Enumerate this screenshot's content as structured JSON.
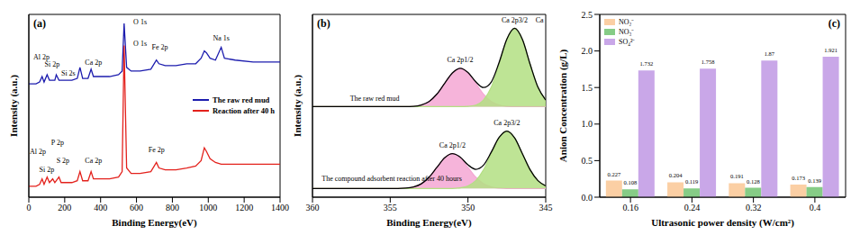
{
  "chart_data": [
    {
      "type": "line",
      "title": "(a)",
      "x_label": "Binding Energy(eV)",
      "y_label": "Intensity (a.u.)",
      "tick_labels": "x",
      "legend": "right",
      "x": [
        0,
        20,
        40,
        60,
        74,
        85,
        102,
        115,
        133,
        145,
        153,
        168,
        180,
        200,
        240,
        270,
        285,
        300,
        330,
        347,
        360,
        400,
        450,
        500,
        520,
        531,
        545,
        570,
        620,
        680,
        711,
        725,
        760,
        820,
        880,
        930,
        960,
        978,
        990,
        1010,
        1040,
        1072,
        1090,
        1150,
        1250,
        1350,
        1400
      ],
      "xlim": [
        0,
        1400
      ],
      "xticks": [
        0,
        200,
        400,
        600,
        800,
        1000,
        1200,
        1400
      ],
      "ylim": [
        0,
        100
      ],
      "series": [
        {
          "name": "The raw red mud",
          "color": "#1c1cae",
          "values": [
            62,
            62,
            62,
            63,
            66,
            63,
            67,
            64,
            64,
            64,
            67,
            64,
            64,
            64,
            64,
            65,
            71,
            65,
            65,
            70,
            66,
            66,
            66,
            67,
            69,
            95,
            71,
            69,
            69,
            70,
            75,
            73,
            72,
            72,
            73,
            73,
            76,
            80,
            79,
            76,
            75,
            82,
            76,
            75,
            74,
            74,
            74
          ]
        },
        {
          "name": "Reaction after 40 h",
          "color": "#e3211c",
          "values": [
            6,
            6,
            6,
            7,
            10,
            7,
            11,
            8,
            10,
            8,
            9,
            11,
            8,
            8,
            8,
            9,
            14,
            9,
            9,
            14,
            10,
            10,
            10,
            11,
            14,
            83,
            16,
            13,
            13,
            14,
            19,
            16,
            15,
            15,
            16,
            17,
            20,
            27,
            25,
            21,
            19,
            18,
            18,
            18,
            18,
            18,
            18
          ]
        }
      ],
      "annotations": [
        {
          "text": "Al 2p",
          "x": 70,
          "y": 77
        },
        {
          "text": "Si 2p",
          "x": 130,
          "y": 73
        },
        {
          "text": "Si 2s",
          "x": 220,
          "y": 68
        },
        {
          "text": "Ca 2p",
          "x": 360,
          "y": 74
        },
        {
          "text": "O 1s",
          "x": 620,
          "y": 96
        },
        {
          "text": "Fe 2p",
          "x": 730,
          "y": 82
        },
        {
          "text": "Na 1s",
          "x": 1072,
          "y": 87
        },
        {
          "text": "Al 2p",
          "x": 50,
          "y": 25
        },
        {
          "text": "Si 2p",
          "x": 100,
          "y": 15
        },
        {
          "text": "P 2p",
          "x": 160,
          "y": 30
        },
        {
          "text": "S 2p",
          "x": 190,
          "y": 20
        },
        {
          "text": "Ca 2p",
          "x": 360,
          "y": 20
        },
        {
          "text": "O 1s",
          "x": 620,
          "y": 84
        },
        {
          "text": "Fe 2p",
          "x": 711,
          "y": 26
        }
      ]
    },
    {
      "type": "line",
      "title": "(b)",
      "x_label": "Binding Energy(eV)",
      "y_label": "Intensity (a.u.)",
      "tick_labels": "x",
      "x": [
        360,
        359.5,
        359,
        358.5,
        358,
        357.5,
        357,
        356.5,
        356,
        355.5,
        355,
        354.5,
        354,
        353.5,
        353,
        352.5,
        352,
        351.5,
        351,
        350.5,
        350,
        349.5,
        349,
        348.5,
        348,
        347.5,
        347,
        346.5,
        346,
        345.5,
        345
      ],
      "xlim": [
        360,
        345
      ],
      "xticks": [
        360,
        355,
        350,
        345
      ],
      "ylim": [
        0,
        105
      ],
      "series": [
        {
          "name": "Ca 2p1/2",
          "type": "area",
          "color": "#f4a7d3",
          "baseline": 52,
          "values": [
            52,
            52,
            52,
            52,
            52,
            52,
            52,
            52,
            52,
            52,
            52,
            52,
            52,
            52.2,
            53,
            55,
            59.2,
            65.4,
            71.4,
            74,
            71.4,
            65.4,
            59.2,
            55,
            53,
            52.2,
            52,
            52,
            52,
            52,
            52
          ]
        },
        {
          "name": "Ca 2p3/2",
          "type": "area",
          "color": "#b3df83",
          "baseline": 52,
          "values": [
            52,
            52,
            52,
            52,
            52,
            52,
            52,
            52,
            52,
            52,
            52,
            52,
            52,
            52,
            52,
            52,
            52,
            52,
            52,
            52,
            52.2,
            52.9,
            55.8,
            63.2,
            76.3,
            90.6,
            97,
            90.6,
            76.3,
            63.2,
            55.8
          ]
        },
        {
          "name": "The raw red mud",
          "type": "line",
          "color": "#000000",
          "values": [
            52,
            52,
            52,
            52,
            52,
            52,
            52,
            52,
            52,
            52,
            52,
            52,
            52,
            52.2,
            53,
            55,
            59.2,
            65.4,
            71.4,
            74,
            71.6,
            66.3,
            63,
            66.2,
            77.3,
            90.8,
            97,
            90.6,
            76.3,
            63.2,
            55.8
          ]
        },
        {
          "name": "Ca 2p1/2",
          "type": "area",
          "color": "#f4a7d3",
          "baseline": 5,
          "values": [
            5,
            5,
            5,
            5,
            5,
            5,
            5,
            5,
            5,
            5,
            5,
            5,
            5.2,
            5.9,
            7.7,
            11.5,
            17.1,
            22.6,
            25,
            22.6,
            17.1,
            11.5,
            7.7,
            5.9,
            5.2,
            5,
            5,
            5,
            5,
            5,
            5
          ]
        },
        {
          "name": "Ca 2p3/2",
          "type": "area",
          "color": "#b3df83",
          "baseline": 5,
          "values": [
            5,
            5,
            5,
            5,
            5,
            5,
            5,
            5,
            5,
            5,
            5,
            5,
            5,
            5,
            5,
            5,
            5,
            5,
            5,
            5.4,
            6.5,
            9.5,
            15.7,
            25,
            34.1,
            38,
            34.1,
            25,
            15.7,
            9.5,
            6.5
          ]
        },
        {
          "name": "The compound adsorbent reaction after 40 hours",
          "type": "line",
          "color": "#000000",
          "values": [
            5,
            5,
            5,
            5,
            5,
            5,
            5,
            5,
            5,
            5,
            5,
            5,
            5.2,
            5.9,
            7.7,
            11.5,
            17.1,
            22.6,
            25,
            23,
            18.6,
            16,
            18.4,
            25.9,
            34.3,
            38,
            34.1,
            25,
            15.7,
            9.5,
            6.5
          ]
        }
      ],
      "annotations": [
        {
          "text": "Ca 2p3/2",
          "x": 347,
          "y": 102
        },
        {
          "text": "Ca",
          "x": 345.4,
          "y": 102
        },
        {
          "text": "Ca 2p1/2",
          "x": 350.5,
          "y": 79
        },
        {
          "text": "The raw red mud",
          "x": 356,
          "y": 57
        },
        {
          "text": "Ca 2p3/2",
          "x": 347.5,
          "y": 43
        },
        {
          "text": "Ca 2p1/2",
          "x": 351,
          "y": 30
        },
        {
          "text": "The compound adsorbent reaction after 40 hours",
          "x": 354.9,
          "y": 11
        }
      ]
    },
    {
      "type": "bar",
      "title": "(c)",
      "x_label": "Ultrasonic power density (W/cm²)",
      "y_label": "Anion Concentration (g/L)",
      "legend": "upper left",
      "data_labels": true,
      "categories": [
        "0.16",
        "0.24",
        "0.32",
        "0.4"
      ],
      "ylim": [
        0,
        2.5
      ],
      "yticks": [
        {
          "value": 0,
          "label": "0.0"
        },
        0.5,
        {
          "value": 1,
          "label": "1.0"
        },
        1.5,
        {
          "value": 2,
          "label": "2.0"
        },
        2.5
      ],
      "series": [
        {
          "name": "NO₂⁻",
          "color": "#fbcfa4",
          "values": [
            0.227,
            0.204,
            0.191,
            0.173
          ]
        },
        {
          "name": "NO₃⁻",
          "color": "#86cc86",
          "values": [
            0.108,
            0.119,
            0.128,
            0.139
          ]
        },
        {
          "name": "SO₄²⁻",
          "color": "#c9a7e8",
          "values": [
            1.732,
            1.758,
            1.87,
            1.921
          ]
        }
      ]
    }
  ]
}
